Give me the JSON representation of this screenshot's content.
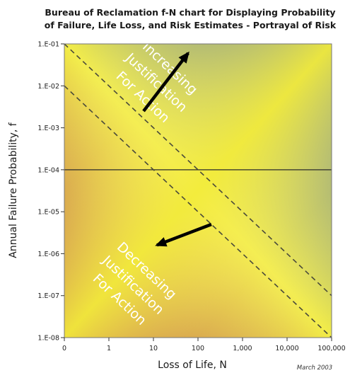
{
  "chart_data": {
    "type": "area",
    "title_lines": [
      "Bureau of Reclamation f-N chart for Displaying Probability",
      "of Failure, Life Loss, and Risk Estimates - Portrayal of Risk"
    ],
    "xlabel": "Loss of Life, N",
    "ylabel": "Annual Failure Probability, f",
    "x_scale": "log",
    "y_scale": "log",
    "x_ticks": [
      "0",
      "1",
      "10",
      "100",
      "1,000",
      "10,000",
      "100,000"
    ],
    "y_ticks": [
      "1.E-01",
      "1.E-02",
      "1.E-03",
      "1.E-04",
      "1.E-05",
      "1.E-06",
      "1.E-07",
      "1.E-08"
    ],
    "xlim": [
      0.1,
      100000
    ],
    "ylim": [
      1e-08,
      0.1
    ],
    "reference_lines": [
      {
        "style": "solid",
        "orientation": "horizontal",
        "y": 0.0001
      },
      {
        "style": "dashed",
        "x": [
          0.1,
          100000
        ],
        "y": [
          0.1,
          1e-07
        ]
      },
      {
        "style": "dashed",
        "x": [
          0.1,
          100000
        ],
        "y": [
          0.01,
          1e-08
        ]
      }
    ],
    "annotations": [
      {
        "lines": [
          "Increasing",
          "Justification",
          "For Action"
        ],
        "arrow": "up-right"
      },
      {
        "lines": [
          "Decreasing",
          "Justification",
          "For Action"
        ],
        "arrow": "down-left"
      }
    ],
    "gradient_colors": {
      "low_risk": "#a3243a",
      "mid": "#f2ec46",
      "high_risk": "#2f56a8"
    },
    "date_note": "March 2003"
  }
}
